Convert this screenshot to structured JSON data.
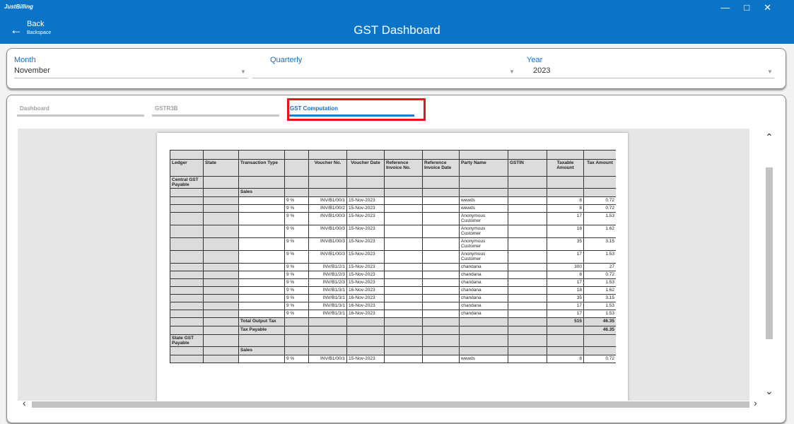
{
  "titlebar": {
    "app": "JustBilling"
  },
  "header": {
    "back": "Back",
    "back_hint": "Backspace",
    "title": "GST Dashboard"
  },
  "filters": [
    {
      "label": "Month",
      "value": "November"
    },
    {
      "label": "Quarterly"
    },
    {
      "label": "Year",
      "value": "2023"
    }
  ],
  "tabs": {
    "items": [
      "Dashboard",
      "GSTR3B",
      "GST Computation"
    ],
    "active": 2
  },
  "table": {
    "headers": [
      "Ledger",
      "State",
      "Transaction Type",
      null,
      "Voucher No.",
      "Voucher Date",
      "Reference Invoice No.",
      "Reference Invoice Date",
      "Party Name",
      "GSTIN",
      "Taxable Amount",
      "Tax Amount"
    ],
    "rows": [
      [
        "Central GST Payable",
        null,
        null,
        null,
        null,
        null,
        null,
        null,
        null,
        null,
        null,
        null
      ],
      [
        null,
        null,
        "Sales",
        null,
        null,
        null,
        null,
        null,
        null,
        null,
        null,
        null
      ],
      [
        null,
        null,
        null,
        "9 %",
        "INV/B1/00/1",
        "15-Nov-2023",
        null,
        null,
        "wewds",
        null,
        8,
        0.72
      ],
      [
        null,
        null,
        null,
        "9 %",
        "INV/B1/00/2",
        "15-Nov-2023",
        null,
        null,
        "wewds",
        null,
        8,
        0.72
      ],
      [
        null,
        null,
        null,
        "9 %",
        "INV/B1/00/3",
        "15-Nov-2023",
        null,
        null,
        "Anonymous Customer",
        null,
        17,
        1.53
      ],
      [
        null,
        null,
        null,
        "9 %",
        "INV/B1/00/3",
        "15-Nov-2023",
        null,
        null,
        "Anonymous Customer",
        null,
        18,
        1.62
      ],
      [
        null,
        null,
        null,
        "9 %",
        "INV/B1/00/3",
        "15-Nov-2023",
        null,
        null,
        "Anonymous Customer",
        null,
        35,
        3.15
      ],
      [
        null,
        null,
        null,
        "9 %",
        "INV/B1/00/3",
        "15-Nov-2023",
        null,
        null,
        "Anonymous Customer",
        null,
        17,
        1.53
      ],
      [
        null,
        null,
        null,
        "9 %",
        "INV/B1/2/1",
        "15-Nov-2023",
        null,
        null,
        "chandana",
        null,
        300,
        27
      ],
      [
        null,
        null,
        null,
        "9 %",
        "INV/B1/2/3",
        "15-Nov-2023",
        null,
        null,
        "chandana",
        null,
        8,
        0.72
      ],
      [
        null,
        null,
        null,
        "9 %",
        "INV/B1/2/3",
        "15-Nov-2023",
        null,
        null,
        "chandana",
        null,
        17,
        1.53
      ],
      [
        null,
        null,
        null,
        "9 %",
        "INV/B1/3/1",
        "16-Nov-2023",
        null,
        null,
        "chandana",
        null,
        18,
        1.62
      ],
      [
        null,
        null,
        null,
        "9 %",
        "INV/B1/3/1",
        "16-Nov-2023",
        null,
        null,
        "chandana",
        null,
        35,
        3.15
      ],
      [
        null,
        null,
        null,
        "9 %",
        "INV/B1/3/1",
        "16-Nov-2023",
        null,
        null,
        "chandana",
        null,
        17,
        1.53
      ],
      [
        null,
        null,
        null,
        "9 %",
        "INV/B1/3/1",
        "16-Nov-2023",
        null,
        null,
        "chandana",
        null,
        17,
        1.53
      ],
      [
        null,
        null,
        "Total Output Tax",
        null,
        null,
        null,
        null,
        null,
        null,
        null,
        515,
        46.35
      ],
      [
        null,
        null,
        "Tax Payable",
        null,
        null,
        null,
        null,
        null,
        null,
        null,
        null,
        46.35
      ],
      [
        "State GST Payable",
        null,
        null,
        null,
        null,
        null,
        null,
        null,
        null,
        null,
        null,
        null
      ],
      [
        null,
        null,
        "Sales",
        null,
        null,
        null,
        null,
        null,
        null,
        null,
        null,
        null
      ],
      [
        null,
        null,
        null,
        "9 %",
        "INV/B1/00/1",
        "15-Nov-2023",
        null,
        null,
        "wewds",
        null,
        8,
        0.72
      ]
    ]
  }
}
